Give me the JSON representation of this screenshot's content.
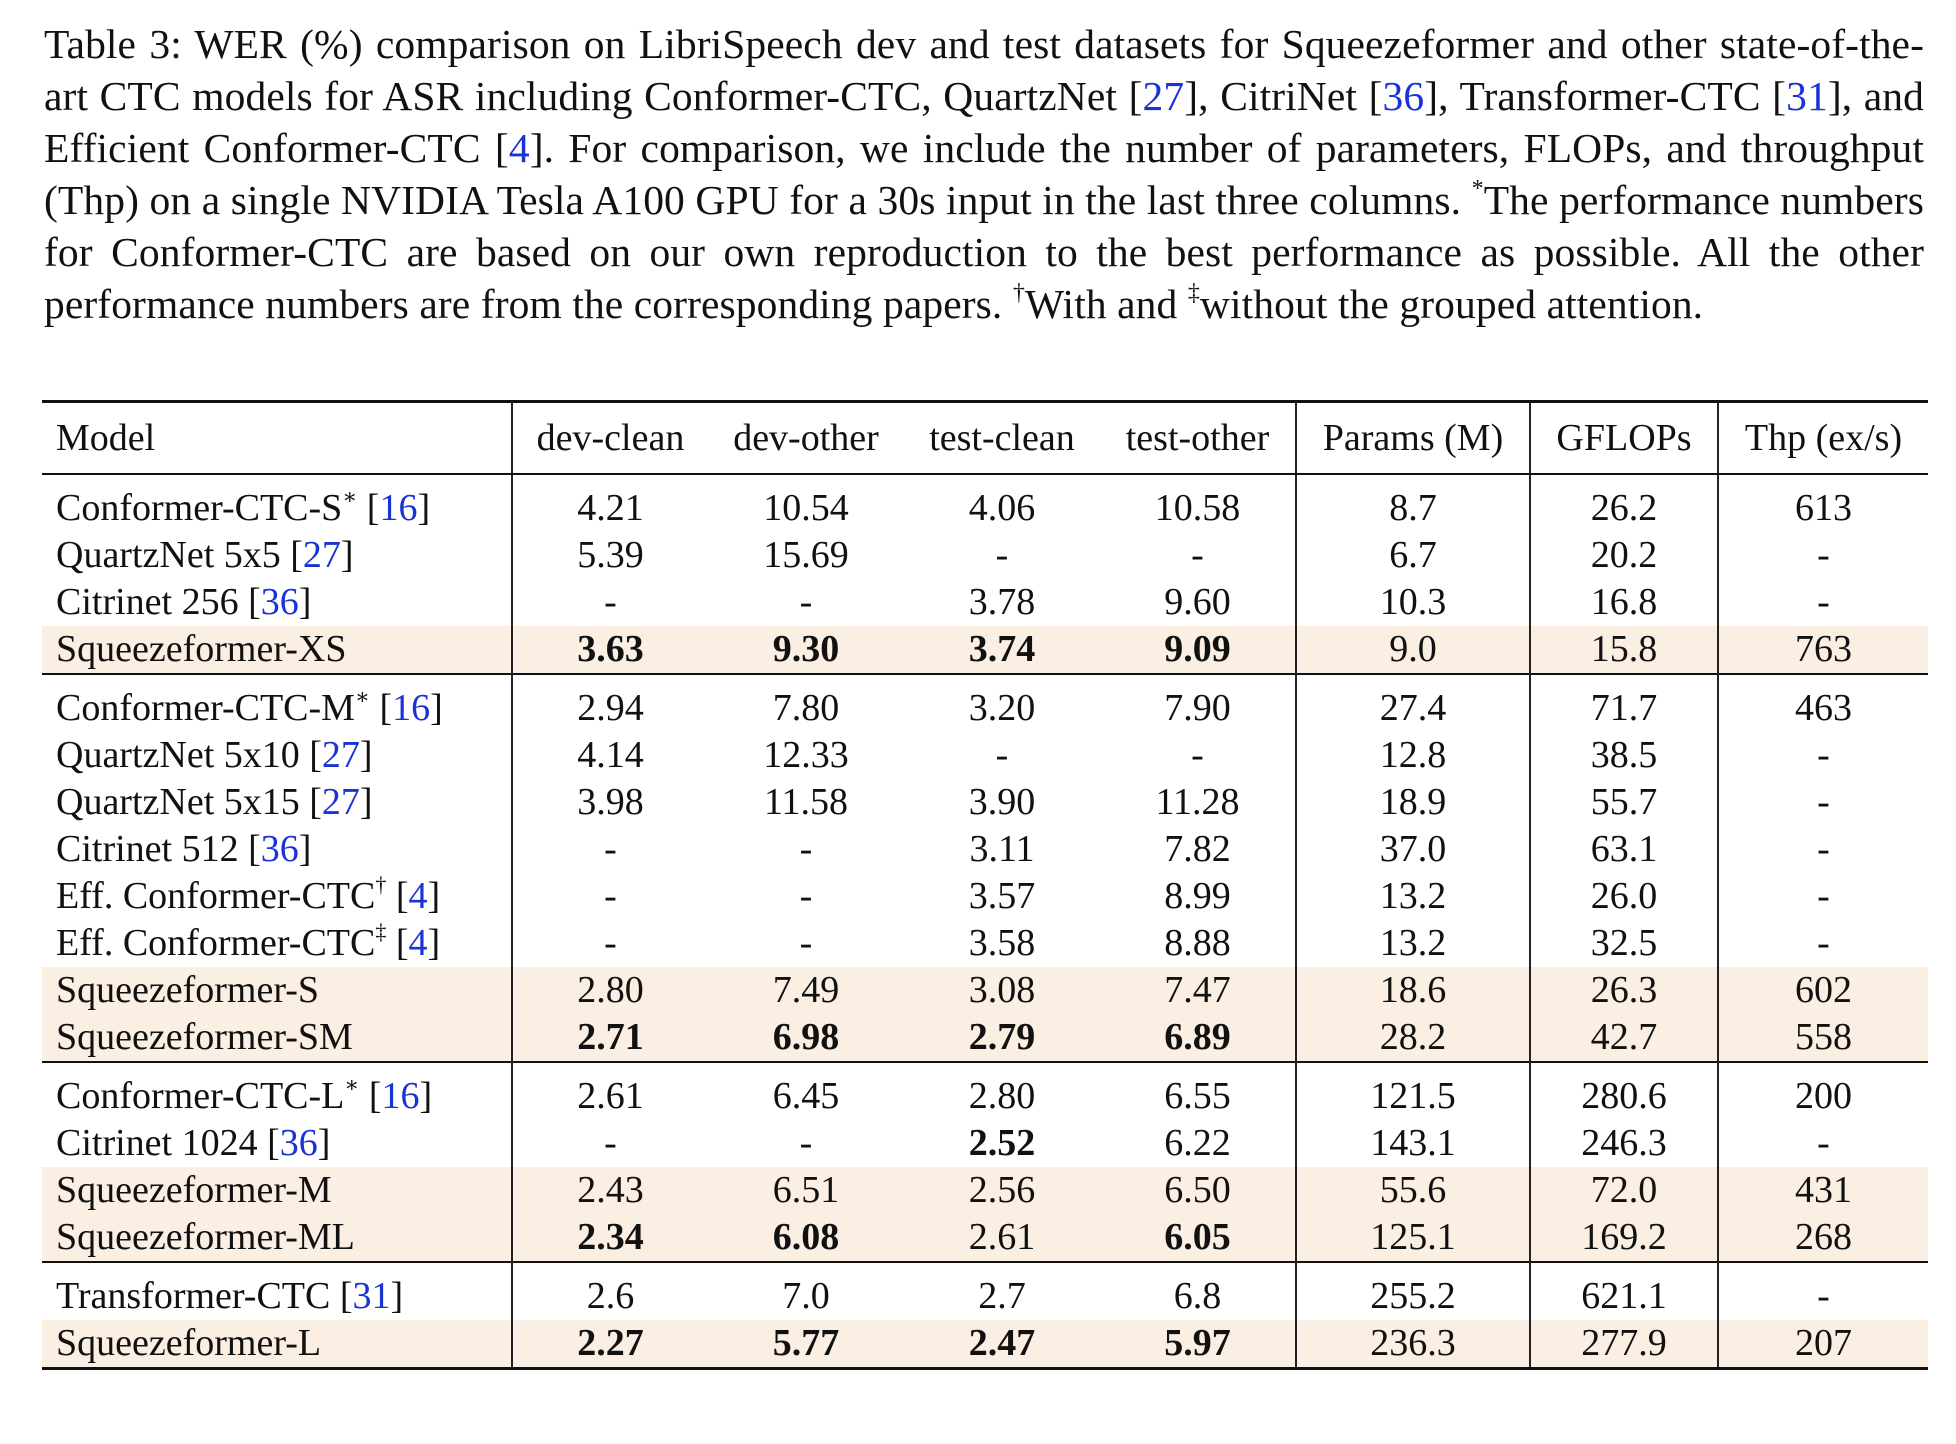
{
  "caption": {
    "prefix": "Table 3: WER (%) comparison on LibriSpeech dev and test datasets for Squeezeformer and other state-of-the-art CTC models for ASR including Conformer-CTC, QuartzNet [",
    "ref1": "27",
    "mid1": "], CitriNet [",
    "ref2": "36",
    "mid2": "], Transformer-CTC [",
    "ref3": "31",
    "mid3": "], and Efficient Conformer-CTC [",
    "ref4": "4",
    "mid4": "]. For comparison, we include the number of parameters, FLOPs, and throughput (Thp) on a single NVIDIA Tesla A100 GPU for a 30s input in the last three columns. ",
    "star": "*",
    "mid5": "The performance numbers for Conformer-CTC are based on our own reproduction to the best performance as possible. All the other performance numbers are from the corresponding papers. ",
    "dagger": "†",
    "mid6": "With and ",
    "ddagger": "‡",
    "suffix": "without the grouped attention."
  },
  "table": {
    "headers": [
      "Model",
      "dev-clean",
      "dev-other",
      "test-clean",
      "test-other",
      "Params (M)",
      "GFLOPs",
      "Thp (ex/s)"
    ],
    "groups": [
      {
        "rows": [
          {
            "name": "Conformer-CTC-S",
            "mark": "∗",
            "ref": "16",
            "highlight": false,
            "cells": [
              "4.21",
              "10.54",
              "4.06",
              "10.58",
              "8.7",
              "26.2",
              "613"
            ],
            "bold": []
          },
          {
            "name": "QuartzNet 5x5",
            "mark": "",
            "ref": "27",
            "highlight": false,
            "cells": [
              "5.39",
              "15.69",
              "-",
              "-",
              "6.7",
              "20.2",
              "-"
            ],
            "bold": []
          },
          {
            "name": "Citrinet 256",
            "mark": "",
            "ref": "36",
            "highlight": false,
            "cells": [
              "-",
              "-",
              "3.78",
              "9.60",
              "10.3",
              "16.8",
              "-"
            ],
            "bold": []
          },
          {
            "name": "Squeezeformer-XS",
            "mark": "",
            "ref": "",
            "highlight": true,
            "cells": [
              "3.63",
              "9.30",
              "3.74",
              "9.09",
              "9.0",
              "15.8",
              "763"
            ],
            "bold": [
              0,
              1,
              2,
              3
            ]
          }
        ]
      },
      {
        "rows": [
          {
            "name": "Conformer-CTC-M",
            "mark": "∗",
            "ref": "16",
            "highlight": false,
            "cells": [
              "2.94",
              "7.80",
              "3.20",
              "7.90",
              "27.4",
              "71.7",
              "463"
            ],
            "bold": []
          },
          {
            "name": "QuartzNet 5x10",
            "mark": "",
            "ref": "27",
            "highlight": false,
            "cells": [
              "4.14",
              "12.33",
              "-",
              "-",
              "12.8",
              "38.5",
              "-"
            ],
            "bold": []
          },
          {
            "name": "QuartzNet 5x15",
            "mark": "",
            "ref": "27",
            "highlight": false,
            "cells": [
              "3.98",
              "11.58",
              "3.90",
              "11.28",
              "18.9",
              "55.7",
              "-"
            ],
            "bold": []
          },
          {
            "name": "Citrinet 512",
            "mark": "",
            "ref": "36",
            "highlight": false,
            "cells": [
              "-",
              "-",
              "3.11",
              "7.82",
              "37.0",
              "63.1",
              "-"
            ],
            "bold": []
          },
          {
            "name": "Eff. Conformer-CTC",
            "mark": "†",
            "ref": "4",
            "highlight": false,
            "cells": [
              "-",
              "-",
              "3.57",
              "8.99",
              "13.2",
              "26.0",
              "-"
            ],
            "bold": []
          },
          {
            "name": "Eff. Conformer-CTC",
            "mark": "‡",
            "ref": "4",
            "highlight": false,
            "cells": [
              "-",
              "-",
              "3.58",
              "8.88",
              "13.2",
              "32.5",
              "-"
            ],
            "bold": []
          },
          {
            "name": "Squeezeformer-S",
            "mark": "",
            "ref": "",
            "highlight": true,
            "cells": [
              "2.80",
              "7.49",
              "3.08",
              "7.47",
              "18.6",
              "26.3",
              "602"
            ],
            "bold": []
          },
          {
            "name": "Squeezeformer-SM",
            "mark": "",
            "ref": "",
            "highlight": true,
            "cells": [
              "2.71",
              "6.98",
              "2.79",
              "6.89",
              "28.2",
              "42.7",
              "558"
            ],
            "bold": [
              0,
              1,
              2,
              3
            ]
          }
        ]
      },
      {
        "rows": [
          {
            "name": "Conformer-CTC-L",
            "mark": "∗",
            "ref": "16",
            "highlight": false,
            "cells": [
              "2.61",
              "6.45",
              "2.80",
              "6.55",
              "121.5",
              "280.6",
              "200"
            ],
            "bold": []
          },
          {
            "name": "Citrinet 1024",
            "mark": "",
            "ref": "36",
            "highlight": false,
            "cells": [
              "-",
              "-",
              "2.52",
              "6.22",
              "143.1",
              "246.3",
              "-"
            ],
            "bold": [
              2
            ]
          },
          {
            "name": "Squeezeformer-M",
            "mark": "",
            "ref": "",
            "highlight": true,
            "cells": [
              "2.43",
              "6.51",
              "2.56",
              "6.50",
              "55.6",
              "72.0",
              "431"
            ],
            "bold": []
          },
          {
            "name": "Squeezeformer-ML",
            "mark": "",
            "ref": "",
            "highlight": true,
            "cells": [
              "2.34",
              "6.08",
              "2.61",
              "6.05",
              "125.1",
              "169.2",
              "268"
            ],
            "bold": [
              0,
              1,
              3
            ]
          }
        ]
      },
      {
        "rows": [
          {
            "name": "Transformer-CTC",
            "mark": "",
            "ref": "31",
            "highlight": false,
            "cells": [
              "2.6",
              "7.0",
              "2.7",
              "6.8",
              "255.2",
              "621.1",
              "-"
            ],
            "bold": []
          },
          {
            "name": "Squeezeformer-L",
            "mark": "",
            "ref": "",
            "highlight": true,
            "cells": [
              "2.27",
              "5.77",
              "2.47",
              "5.97",
              "236.3",
              "277.9",
              "207"
            ],
            "bold": [
              0,
              1,
              2,
              3
            ]
          }
        ]
      }
    ]
  }
}
